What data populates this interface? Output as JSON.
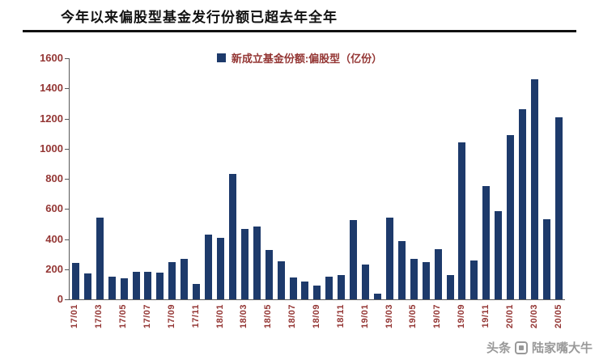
{
  "page": {
    "title": "今年以来偏股型基金发行份额已超去年全年",
    "watermark": {
      "platform": "头条",
      "account": "陆家嘴大牛"
    }
  },
  "colors": {
    "bar": "#1d3a6b",
    "axis_text": "#943634",
    "title_text": "#111111",
    "axis_line": "#595959",
    "watermark_text": "#8f8f8f"
  },
  "chart_data": {
    "type": "bar",
    "title": "今年以来偏股型基金发行份额已超去年全年",
    "legend": [
      "新成立基金份额:偏股型（亿份）"
    ],
    "legend_position": "top-center",
    "grid": false,
    "ylim": [
      0,
      1600
    ],
    "yticks": [
      0,
      200,
      400,
      600,
      800,
      1000,
      1200,
      1400,
      1600
    ],
    "xtick_every": 2,
    "categories": [
      "17/01",
      "17/02",
      "17/03",
      "17/04",
      "17/05",
      "17/06",
      "17/07",
      "17/08",
      "17/09",
      "17/10",
      "17/11",
      "17/12",
      "18/01",
      "18/02",
      "18/03",
      "18/04",
      "18/05",
      "18/06",
      "18/07",
      "18/08",
      "18/09",
      "18/10",
      "18/11",
      "18/12",
      "19/01",
      "19/02",
      "19/03",
      "19/04",
      "19/05",
      "19/06",
      "19/07",
      "19/08",
      "19/09",
      "19/10",
      "19/11",
      "19/12",
      "20/01",
      "20/02",
      "20/03",
      "20/04",
      "20/05"
    ],
    "values": [
      240,
      170,
      545,
      150,
      140,
      185,
      180,
      175,
      245,
      270,
      100,
      430,
      410,
      830,
      465,
      485,
      330,
      255,
      145,
      120,
      90,
      150,
      160,
      525,
      230,
      35,
      545,
      385,
      270,
      245,
      335,
      160,
      1040,
      260,
      750,
      585,
      1090,
      1260,
      1460,
      530,
      1210
    ]
  }
}
